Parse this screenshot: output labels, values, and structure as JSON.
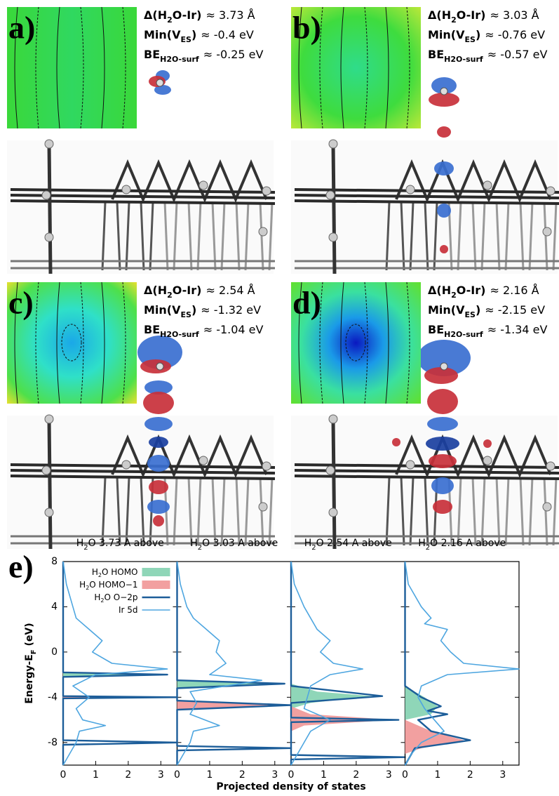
{
  "panels": [
    {
      "label": "a)",
      "lines": [
        {
          "name": [
            "Δ(H",
            "2",
            "O-Ir)"
          ],
          "value": "≈ 3.73 Å"
        },
        {
          "name": [
            "Min(V",
            "ES",
            ")"
          ],
          "value": "≈ -0.4 eV"
        },
        {
          "name": [
            "BE",
            "H2O-surf"
          ],
          "value": "≈ -0.25 eV"
        }
      ]
    },
    {
      "label": "b)",
      "lines": [
        {
          "name": [
            "Δ(H",
            "2",
            "O-Ir)"
          ],
          "value": "≈ 3.03 Å"
        },
        {
          "name": [
            "Min(V",
            "ES",
            ")"
          ],
          "value": "≈ -0.76 eV"
        },
        {
          "name": [
            "BE",
            "H2O-surf"
          ],
          "value": "≈ -0.57 eV"
        }
      ]
    },
    {
      "label": "c)",
      "lines": [
        {
          "name": [
            "Δ(H",
            "2",
            "O-Ir)"
          ],
          "value": "≈ 2.54 Å"
        },
        {
          "name": [
            "Min(V",
            "ES",
            ")"
          ],
          "value": "≈ -1.32 eV"
        },
        {
          "name": [
            "BE",
            "H2O-surf"
          ],
          "value": "≈ -1.04 eV"
        }
      ]
    },
    {
      "label": "d)",
      "lines": [
        {
          "name": [
            "Δ(H",
            "2",
            "O-Ir)"
          ],
          "value": "≈ 2.16 Å"
        },
        {
          "name": [
            "Min(V",
            "ES",
            ")"
          ],
          "value": "≈ -2.15 eV"
        },
        {
          "name": [
            "BE",
            "H2O-surf"
          ],
          "value": "≈ -1.34 eV"
        }
      ]
    }
  ],
  "chart_data": {
    "type": "line",
    "label": "e)",
    "ylabel": [
      "Energy-E",
      "F",
      " (eV)"
    ],
    "xlabel": "Projected density of states",
    "ylim": [
      -10,
      8
    ],
    "yticks": [
      -8,
      -4,
      0,
      4,
      8
    ],
    "xlim": [
      0,
      3.5
    ],
    "xticks": [
      0,
      1,
      2,
      3
    ],
    "legend": "upper right",
    "series": [
      {
        "name": [
          "H",
          "2",
          "O HOMO"
        ],
        "color": "#8fd6b8",
        "style": "area"
      },
      {
        "name": [
          "H",
          "2",
          "O HOMO−1"
        ],
        "color": "#f2a0a0",
        "style": "area"
      },
      {
        "name": [
          "H",
          "2",
          "O O−2p"
        ],
        "color": "#1c5d99",
        "style": "line"
      },
      {
        "name": [
          "Ir 5d"
        ],
        "color": "#4ea6e0",
        "style": "line"
      }
    ],
    "subplots": [
      {
        "title": [
          "H",
          "2",
          "O 3.73 A above"
        ],
        "data": [
          {
            "energy": [
              -1.8,
              -2,
              -2.2
            ],
            "values": [
              0,
              3,
              0
            ]
          },
          {
            "energy": [
              -3.9,
              -4,
              -4.1
            ],
            "values": [
              0,
              3.3,
              0
            ]
          },
          {
            "energy": [
              8,
              -1.8,
              -2,
              -2.2,
              -3.9,
              -4,
              -4.1,
              -7.8,
              -8,
              -8.2,
              -10
            ],
            "values": [
              0,
              0,
              3.2,
              0,
              0,
              3.5,
              0,
              0,
              3.5,
              0,
              0
            ]
          },
          {
            "energy": [
              8,
              6,
              4,
              3,
              2,
              1,
              0,
              -1,
              -1.5,
              -2,
              -3,
              -4,
              -5,
              -6,
              -6.5,
              -7,
              -8,
              -9,
              -10
            ],
            "values": [
              0,
              0.1,
              0.3,
              0.4,
              0.8,
              1.2,
              0.9,
              1.5,
              3.2,
              1,
              0.3,
              0.8,
              0.4,
              0.6,
              1.3,
              0.5,
              0.4,
              0.2,
              0
            ]
          }
        ]
      },
      {
        "title": [
          "H",
          "2",
          "O 3.03 A above"
        ],
        "data": [
          {
            "energy": [
              -2.5,
              -2.8,
              -3.2
            ],
            "values": [
              0,
              3,
              0
            ]
          },
          {
            "energy": [
              -4.3,
              -4.7,
              -5.1
            ],
            "values": [
              0,
              3.3,
              0
            ]
          },
          {
            "energy": [
              8,
              -2.5,
              -2.8,
              -3.2,
              -4.3,
              -4.7,
              -5.1,
              -8.3,
              -8.5,
              -8.7,
              -10
            ],
            "values": [
              0,
              0,
              3.3,
              0,
              0,
              3.5,
              0,
              0,
              3.5,
              0,
              0
            ]
          },
          {
            "energy": [
              8,
              6,
              4,
              3,
              2,
              1,
              0,
              -1,
              -2,
              -2.5,
              -3.5,
              -4.5,
              -5.5,
              -6.5,
              -7,
              -8,
              -9,
              -10
            ],
            "values": [
              0,
              0.1,
              0.3,
              0.5,
              0.9,
              1.3,
              1.2,
              1.5,
              1,
              2.6,
              0.4,
              0.6,
              0.4,
              1.3,
              0.5,
              0.4,
              0.2,
              0
            ]
          }
        ]
      },
      {
        "title": [
          "H",
          "2",
          "O 2.54 A above"
        ],
        "data": [
          {
            "energy": [
              -2.8,
              -3.5,
              -3.9,
              -4.5,
              -5
            ],
            "values": [
              0,
              0.8,
              2.5,
              0.6,
              0
            ]
          },
          {
            "energy": [
              -4.8,
              -5.5,
              -6,
              -6.5,
              -7
            ],
            "values": [
              0,
              0.6,
              3.2,
              0.4,
              0
            ]
          },
          {
            "energy": [
              8,
              -3,
              -3.9,
              -4.5,
              -5.8,
              -6,
              -6.2,
              -9.1,
              -9.3,
              -9.5,
              -10
            ],
            "values": [
              0,
              0,
              2.8,
              0,
              0,
              3.3,
              0,
              0,
              3.5,
              0,
              0
            ]
          },
          {
            "energy": [
              8,
              6,
              4,
              3,
              2,
              1,
              0,
              -1,
              -1.5,
              -2,
              -3,
              -4,
              -5,
              -6,
              -7,
              -8,
              -9,
              -10
            ],
            "values": [
              0,
              0.1,
              0.4,
              0.6,
              0.8,
              1.2,
              0.9,
              1.3,
              2.2,
              1.2,
              0.6,
              0.5,
              0.4,
              1.2,
              0.6,
              0.4,
              0.2,
              0
            ]
          }
        ]
      },
      {
        "title": [
          "H",
          "2",
          "O 2.16 A above"
        ],
        "data": [
          {
            "energy": [
              -3,
              -4,
              -4.8,
              -5.5,
              -6
            ],
            "values": [
              0,
              0.6,
              1,
              0.8,
              0
            ]
          },
          {
            "energy": [
              -6,
              -7,
              -7.8,
              -8.5,
              -9
            ],
            "values": [
              0,
              0.8,
              1.8,
              0.5,
              0
            ]
          },
          {
            "energy": [
              8,
              -3,
              -4,
              -4.8,
              -5.2,
              -5.5,
              -6,
              -7,
              -7.8,
              -8.5,
              -10
            ],
            "values": [
              0,
              0,
              0.5,
              1.1,
              0.7,
              1.3,
              0.4,
              0.8,
              2,
              0.3,
              0
            ]
          },
          {
            "energy": [
              8,
              6,
              4,
              3,
              2.5,
              2,
              1,
              0,
              -1,
              -1.5,
              -2,
              -3,
              -4,
              -5,
              -6,
              -7,
              -8,
              -9,
              -10
            ],
            "values": [
              0,
              0.1,
              0.5,
              0.8,
              0.6,
              1.3,
              1.1,
              1.4,
              1.8,
              3.5,
              1.3,
              0.5,
              0.4,
              0.6,
              0.9,
              1.2,
              0.5,
              0.2,
              0
            ]
          }
        ]
      }
    ]
  }
}
